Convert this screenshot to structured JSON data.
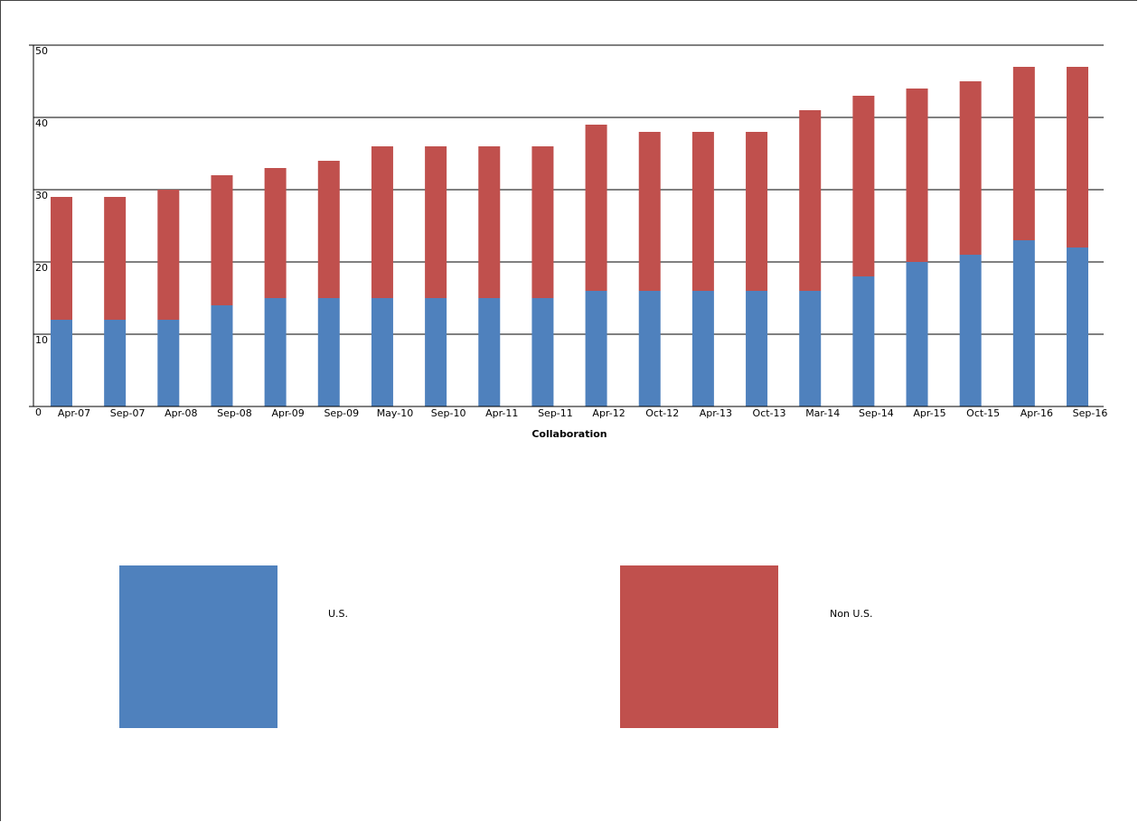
{
  "chart_data": {
    "type": "bar",
    "stacked": true,
    "title": "",
    "xlabel": "Collaboration",
    "ylabel": "",
    "ylim": [
      0,
      50
    ],
    "yticks": [
      0,
      10,
      20,
      30,
      40,
      50
    ],
    "grid": true,
    "legend_position": "bottom",
    "categories": [
      "Apr-07",
      "Sep-07",
      "Apr-08",
      "Sep-08",
      "Apr-09",
      "Sep-09",
      "May-10",
      "Sep-10",
      "Apr-11",
      "Sep-11",
      "Apr-12",
      "Oct-12",
      "Apr-13",
      "Oct-13",
      "Mar-14",
      "Sep-14",
      "Apr-15",
      "Oct-15",
      "Apr-16",
      "Sep-16"
    ],
    "series": [
      {
        "name": "U.S.",
        "color": "#4F81BD",
        "values": [
          12,
          12,
          12,
          14,
          15,
          15,
          15,
          15,
          15,
          15,
          16,
          16,
          16,
          16,
          16,
          18,
          20,
          21,
          23,
          22
        ]
      },
      {
        "name": "Non U.S.",
        "color": "#C0504D",
        "values": [
          17,
          17,
          18,
          18,
          18,
          19,
          21,
          21,
          21,
          21,
          23,
          22,
          22,
          22,
          25,
          25,
          24,
          24,
          24,
          25
        ]
      }
    ]
  }
}
